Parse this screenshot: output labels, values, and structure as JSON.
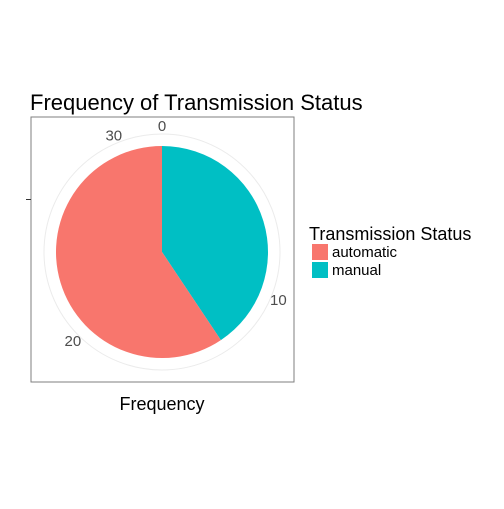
{
  "chart_data": {
    "type": "pie",
    "title": "Frequency of Transmission Status",
    "xlabel": "Frequency",
    "ylabel": "",
    "legend": {
      "title": "Transmission Status",
      "placement": "right"
    },
    "categories": [
      "automatic",
      "manual"
    ],
    "values": [
      19,
      13
    ],
    "colors": [
      "#F8766D",
      "#00BFC4"
    ],
    "axis_ticks": [
      "0",
      "10",
      "20",
      "30"
    ],
    "axis_tick_values": [
      0,
      10,
      20,
      30
    ],
    "total": 32,
    "grid": true,
    "panel_border": true
  }
}
